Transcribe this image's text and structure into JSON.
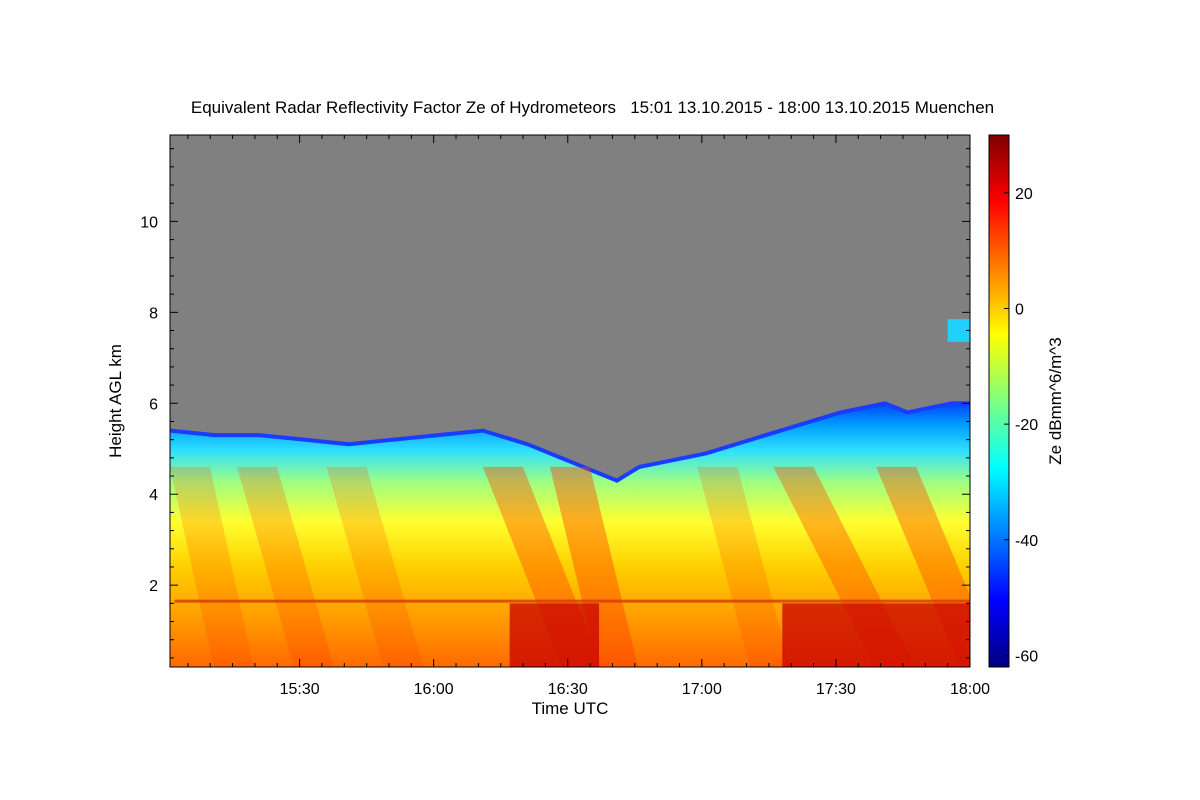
{
  "chart_data": {
    "type": "heatmap",
    "title": "Equivalent Radar Reflectivity Factor Ze of Hydrometeors   15:01 13.10.2015 - 18:00 13.10.2015 Muenchen",
    "xlabel": "Time UTC",
    "ylabel": "Height AGL km",
    "colorbar_label": "Ze dBmm^6/m^3",
    "x_ticks": [
      "15:30",
      "16:00",
      "16:30",
      "17:00",
      "17:30",
      "18:00"
    ],
    "x_tick_minutes": [
      29,
      59,
      89,
      119,
      149,
      179
    ],
    "xlim_minutes": [
      0,
      179
    ],
    "y_ticks": [
      2,
      4,
      6,
      8,
      10
    ],
    "ylim": [
      0.2,
      11.9
    ],
    "colorbar_ticks": [
      20,
      0,
      -20,
      -40,
      -60
    ],
    "colorbar_range": [
      -62,
      30
    ],
    "colormap": [
      "#00007f",
      "#0000ff",
      "#007fff",
      "#00ffff",
      "#7fff7f",
      "#ffff00",
      "#ff7f00",
      "#ff0000",
      "#7f0000"
    ],
    "no_echo_color": "#808080",
    "echo_top_km": {
      "minutes": [
        0,
        10,
        20,
        30,
        40,
        50,
        60,
        70,
        80,
        90,
        95,
        100,
        105,
        110,
        120,
        130,
        140,
        150,
        160,
        165,
        170,
        175,
        179
      ],
      "heights": [
        5.4,
        5.3,
        5.3,
        5.2,
        5.1,
        5.2,
        5.3,
        5.4,
        5.1,
        4.7,
        4.5,
        4.3,
        4.6,
        4.7,
        4.9,
        5.2,
        5.5,
        5.8,
        6.0,
        5.8,
        5.9,
        6.0,
        6.0
      ]
    },
    "bright_band_km": 1.65
  }
}
